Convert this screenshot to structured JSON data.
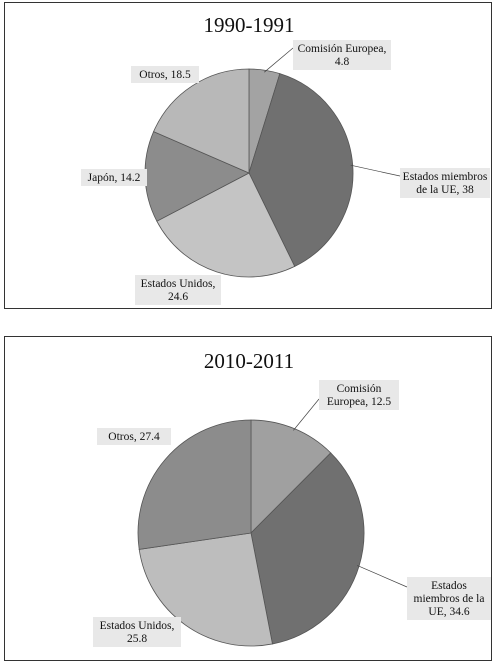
{
  "chart_data": [
    {
      "type": "pie",
      "title": "1990-1991",
      "slices": [
        {
          "label": [
            "Comisión Europea,",
            "4.8"
          ],
          "value": 4.8,
          "color": "#a3a3a3"
        },
        {
          "label": [
            "Estados miembros",
            "de la UE, 38"
          ],
          "value": 38,
          "color": "#707070"
        },
        {
          "label": [
            "Estados Unidos,",
            "24.6"
          ],
          "value": 24.6,
          "color": "#c4c4c4"
        },
        {
          "label": [
            "Japón, 14.2"
          ],
          "value": 14.2,
          "color": "#8c8c8c"
        },
        {
          "label": [
            "Otros, 18.5"
          ],
          "value": 18.5,
          "color": "#b8b8b8"
        }
      ]
    },
    {
      "type": "pie",
      "title": "2010-2011",
      "slices": [
        {
          "label": [
            "Comisión",
            "Europea,  12.5"
          ],
          "value": 12.5,
          "color": "#a0a0a0"
        },
        {
          "label": [
            "Estados",
            "miembros de la",
            "UE, 34.6"
          ],
          "value": 34.6,
          "color": "#707070"
        },
        {
          "label": [
            "Estados Unidos,",
            "25.8"
          ],
          "value": 25.8,
          "color": "#bdbdbd"
        },
        {
          "label": [
            "Otros, 27.4"
          ],
          "value": 27.4,
          "color": "#8c8c8c"
        }
      ]
    }
  ]
}
